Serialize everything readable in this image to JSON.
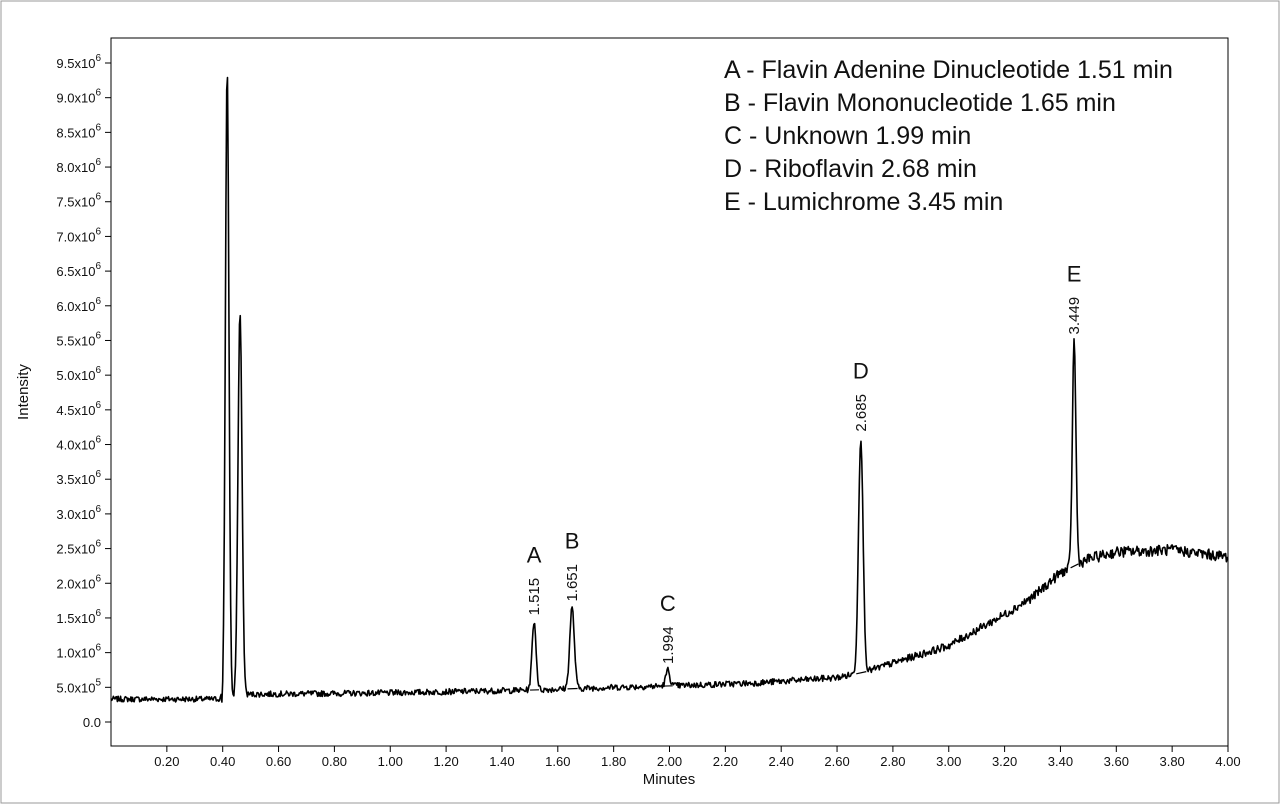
{
  "chart_data": {
    "type": "line",
    "xlabel": "Minutes",
    "ylabel": "Intensity",
    "xlim": [
      0.0,
      4.0
    ],
    "ylim": [
      -200000,
      10000000
    ],
    "x_ticks": [
      0.2,
      0.4,
      0.6,
      0.8,
      1.0,
      1.2,
      1.4,
      1.6,
      1.8,
      2.0,
      2.2,
      2.4,
      2.6,
      2.8,
      3.0,
      3.2,
      3.4,
      3.6,
      3.8,
      4.0
    ],
    "x_tick_labels": [
      "0.20",
      "0.40",
      "0.60",
      "0.80",
      "1.00",
      "1.20",
      "1.40",
      "1.60",
      "1.80",
      "2.00",
      "2.20",
      "2.40",
      "2.60",
      "2.80",
      "3.00",
      "3.20",
      "3.40",
      "3.60",
      "3.80",
      "4.00"
    ],
    "y_ticks": [
      {
        "value": 0,
        "mantissa": "0.0",
        "exp": ""
      },
      {
        "value": 500000,
        "mantissa": "5.0x10",
        "exp": "5"
      },
      {
        "value": 1000000,
        "mantissa": "1.0x10",
        "exp": "6"
      },
      {
        "value": 1500000,
        "mantissa": "1.5x10",
        "exp": "6"
      },
      {
        "value": 2000000,
        "mantissa": "2.0x10",
        "exp": "6"
      },
      {
        "value": 2500000,
        "mantissa": "2.5x10",
        "exp": "6"
      },
      {
        "value": 3000000,
        "mantissa": "3.0x10",
        "exp": "6"
      },
      {
        "value": 3500000,
        "mantissa": "3.5x10",
        "exp": "6"
      },
      {
        "value": 4000000,
        "mantissa": "4.0x10",
        "exp": "6"
      },
      {
        "value": 4500000,
        "mantissa": "4.5x10",
        "exp": "6"
      },
      {
        "value": 5000000,
        "mantissa": "5.0x10",
        "exp": "6"
      },
      {
        "value": 5500000,
        "mantissa": "5.5x10",
        "exp": "6"
      },
      {
        "value": 6000000,
        "mantissa": "6.0x10",
        "exp": "6"
      },
      {
        "value": 6500000,
        "mantissa": "6.5x10",
        "exp": "6"
      },
      {
        "value": 7000000,
        "mantissa": "7.0x10",
        "exp": "6"
      },
      {
        "value": 7500000,
        "mantissa": "7.5x10",
        "exp": "6"
      },
      {
        "value": 8000000,
        "mantissa": "8.0x10",
        "exp": "6"
      },
      {
        "value": 8500000,
        "mantissa": "8.5x10",
        "exp": "6"
      },
      {
        "value": 9000000,
        "mantissa": "9.0x10",
        "exp": "6"
      },
      {
        "value": 9500000,
        "mantissa": "9.5x10",
        "exp": "6"
      }
    ],
    "baseline": {
      "x": [
        0.0,
        0.38,
        0.4,
        0.5,
        1.0,
        1.5,
        1.8,
        2.0,
        2.3,
        2.6,
        2.7,
        2.8,
        3.0,
        3.2,
        3.3,
        3.4,
        3.5,
        3.6,
        3.8,
        4.0
      ],
      "y": [
        330000,
        330000,
        350000,
        400000,
        420000,
        460000,
        500000,
        520000,
        560000,
        640000,
        720000,
        850000,
        1100000,
        1550000,
        1800000,
        2150000,
        2350000,
        2450000,
        2480000,
        2380000
      ]
    },
    "peaks": [
      {
        "rt": 0.416,
        "height": 9400000,
        "width": 0.014
      },
      {
        "rt": 0.462,
        "height": 5900000,
        "width": 0.016
      },
      {
        "rt": 1.515,
        "height": 1450000,
        "width": 0.016,
        "letter": "A",
        "label": "1.515"
      },
      {
        "rt": 1.651,
        "height": 1650000,
        "width": 0.018,
        "letter": "B",
        "label": "1.651"
      },
      {
        "rt": 1.994,
        "height": 750000,
        "width": 0.016,
        "letter": "C",
        "label": "1.994"
      },
      {
        "rt": 2.685,
        "height": 4100000,
        "width": 0.018,
        "letter": "D",
        "label": "2.685"
      },
      {
        "rt": 3.449,
        "height": 5500000,
        "width": 0.014,
        "letter": "E",
        "label": "3.449"
      }
    ],
    "legend": [
      "A - Flavin Adenine Dinucleotide 1.51 min",
      "B - Flavin Mononucleotide 1.65 min",
      "C - Unknown 1.99 min",
      "D - Riboflavin 2.68 min",
      "E - Lumichrome 3.45 min"
    ],
    "legend_position": "top-right",
    "grid": false,
    "trace_color": "#000000"
  }
}
